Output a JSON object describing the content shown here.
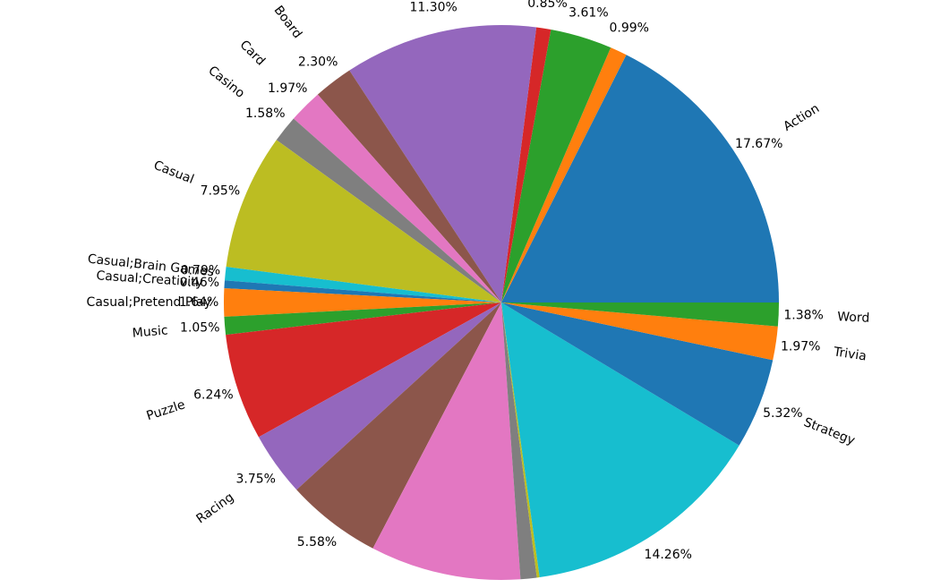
{
  "chart_data": {
    "type": "pie",
    "start_angle_deg": 0,
    "direction": "counterclockwise",
    "slices": [
      {
        "label": "Action",
        "pct": "17.67%",
        "value": 17.67,
        "color": "#1f77b4"
      },
      {
        "label": "",
        "pct": "0.99%",
        "value": 0.99,
        "color": "#ff7f0e"
      },
      {
        "label": "",
        "pct": "3.61%",
        "value": 3.61,
        "color": "#2ca02c"
      },
      {
        "label": "",
        "pct": "0.85%",
        "value": 0.85,
        "color": "#d62728"
      },
      {
        "label": "",
        "pct": "11.30%",
        "value": 11.3,
        "color": "#9467bd"
      },
      {
        "label": "Board",
        "pct": "2.30%",
        "value": 2.3,
        "color": "#8c564b"
      },
      {
        "label": "Card",
        "pct": "1.97%",
        "value": 1.97,
        "color": "#e377c2"
      },
      {
        "label": "Casino",
        "pct": "1.58%",
        "value": 1.58,
        "color": "#7f7f7f"
      },
      {
        "label": "Casual",
        "pct": "7.95%",
        "value": 7.95,
        "color": "#bcbd22"
      },
      {
        "label": "Casual;Brain Games",
        "pct": "0.79%",
        "value": 0.79,
        "color": "#17becf"
      },
      {
        "label": "Casual;Creativity",
        "pct": "0.46%",
        "value": 0.46,
        "color": "#1f77b4"
      },
      {
        "label": "Casual;Pretend Play",
        "pct": "1.64%",
        "value": 1.64,
        "color": "#ff7f0e"
      },
      {
        "label": "Music",
        "pct": "1.05%",
        "value": 1.05,
        "color": "#2ca02c"
      },
      {
        "label": "Puzzle",
        "pct": "6.24%",
        "value": 6.24,
        "color": "#d62728"
      },
      {
        "label": "Racing",
        "pct": "3.75%",
        "value": 3.75,
        "color": "#9467bd"
      },
      {
        "label": "",
        "pct": "5.58%",
        "value": 5.58,
        "color": "#8c564b"
      },
      {
        "label": "",
        "pct": "",
        "value": 8.81,
        "color": "#e377c2"
      },
      {
        "label": "",
        "pct": "",
        "value": 0.95,
        "color": "#7f7f7f"
      },
      {
        "label": "",
        "pct": "",
        "value": 0.16,
        "color": "#bcbd22"
      },
      {
        "label": "",
        "pct": "14.26%",
        "value": 14.26,
        "color": "#17becf"
      },
      {
        "label": "Strategy",
        "pct": "5.32%",
        "value": 5.32,
        "color": "#1f77b4"
      },
      {
        "label": "Trivia",
        "pct": "1.97%",
        "value": 1.97,
        "color": "#ff7f0e"
      },
      {
        "label": "Word",
        "pct": "1.38%",
        "value": 1.38,
        "color": "#2ca02c"
      }
    ]
  }
}
